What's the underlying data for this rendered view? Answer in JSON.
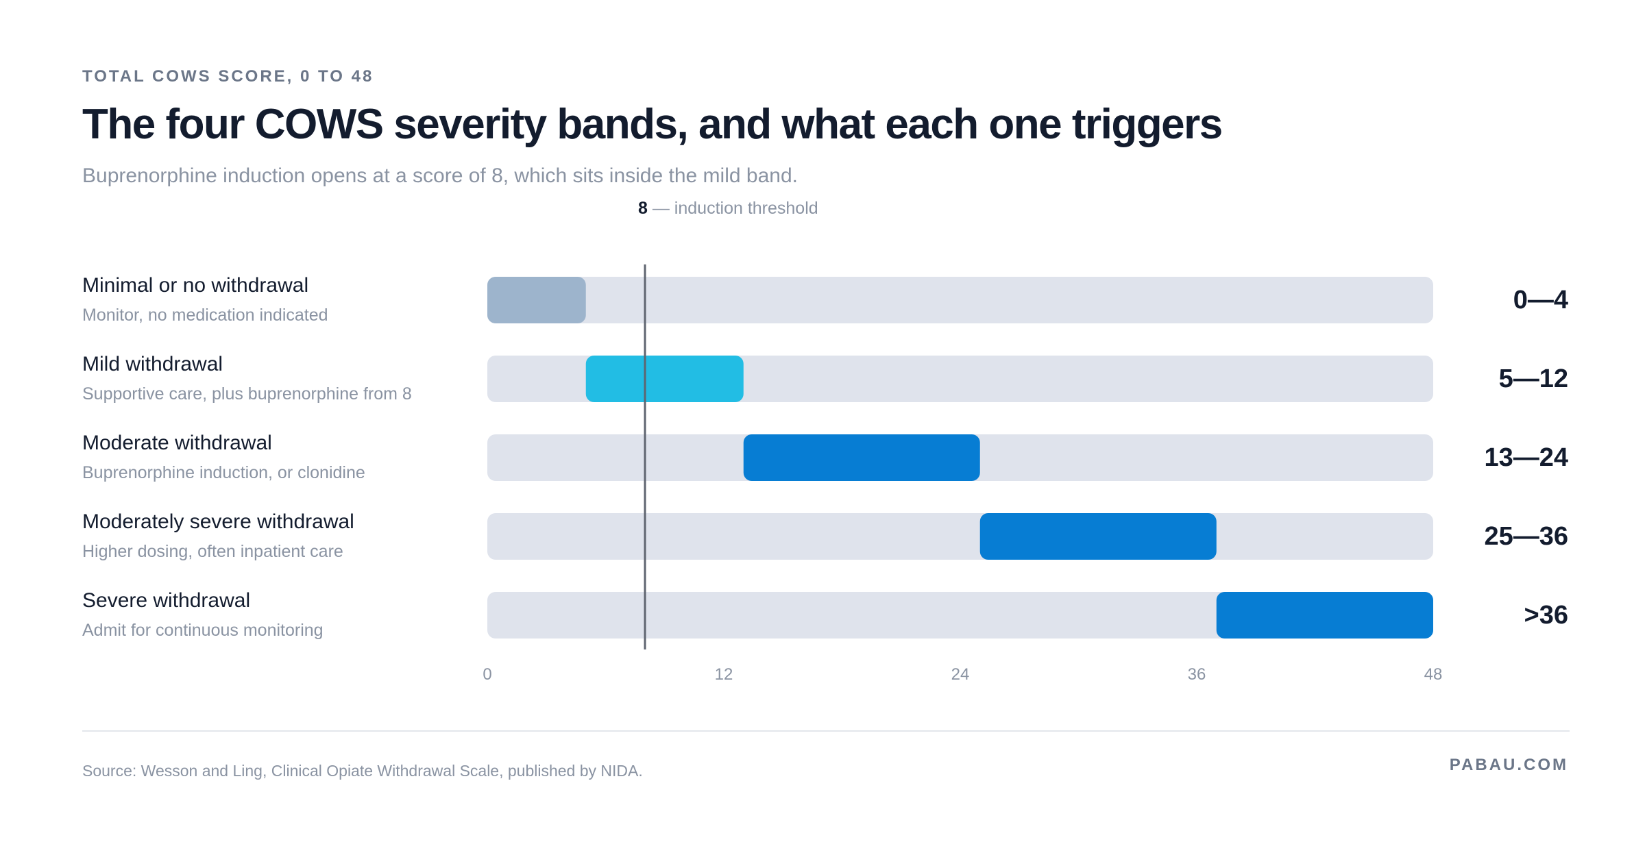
{
  "header": {
    "eyebrow": "TOTAL COWS SCORE, 0 TO 48",
    "title": "The four COWS severity bands, and what each one triggers",
    "subtitle": "Buprenorphine induction opens at a score of 8, which sits inside the mild band."
  },
  "threshold": {
    "value": 8,
    "value_label": "8",
    "text": "— induction threshold"
  },
  "chart_data": {
    "type": "bar",
    "orientation": "horizontal-range",
    "xlim": [
      0,
      48
    ],
    "xticks": [
      "0",
      "12",
      "24",
      "36",
      "48"
    ],
    "tick_values": [
      0,
      12,
      24,
      36,
      48
    ],
    "grid": false,
    "bands": [
      {
        "name": "Minimal or no withdrawal",
        "desc": "Monitor, no medication indicated",
        "start": 0,
        "end": 5,
        "range_label": "0—4",
        "color": "#9db4cc"
      },
      {
        "name": "Mild withdrawal",
        "desc": "Supportive care, plus buprenorphine from 8",
        "start": 5,
        "end": 13,
        "range_label": "5—12",
        "color": "#22bde4"
      },
      {
        "name": "Moderate withdrawal",
        "desc": "Buprenorphine induction, or clonidine",
        "start": 13,
        "end": 25,
        "range_label": "13—24",
        "color": "#077dd3"
      },
      {
        "name": "Moderately severe withdrawal",
        "desc": "Higher dosing, often inpatient care",
        "start": 25,
        "end": 37,
        "range_label": "25—36",
        "color": "#077dd3"
      },
      {
        "name": "Severe withdrawal",
        "desc": "Admit for continuous monitoring",
        "start": 37,
        "end": 48,
        "range_label": ">36",
        "color": "#077dd3"
      }
    ],
    "track_color": "#dfe3ec",
    "threshold_color": "#5f6570"
  },
  "footer": {
    "source": "Source: Wesson and Ling, Clinical Opiate Withdrawal Scale, published by NIDA.",
    "brand": "PABAU.COM"
  }
}
